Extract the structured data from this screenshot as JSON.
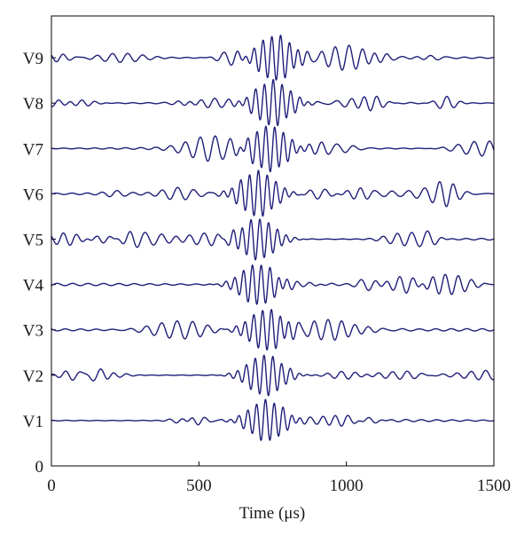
{
  "chart_data": {
    "type": "line",
    "title": "",
    "xlabel": "Time (μs)",
    "ylabel": "",
    "xlim": [
      0,
      1500
    ],
    "ylim": [
      0,
      10
    ],
    "grid": false,
    "legend": "none",
    "x_ticks": [
      0,
      500,
      1000,
      1500
    ],
    "x_tick_labels": [
      "0",
      "500",
      "1000",
      "1500"
    ],
    "y_ticks": [
      0,
      1,
      2,
      3,
      4,
      5,
      6,
      7,
      8,
      9
    ],
    "y_tick_labels": [
      "0",
      "V1",
      "V2",
      "V3",
      "V4",
      "V5",
      "V6",
      "V7",
      "V8",
      "V9"
    ],
    "line_color": "#1f1f7a",
    "series": [
      {
        "name": "V1",
        "offset": 1,
        "main_packet_center_us": 730,
        "main_packet_peak": 0.45
      },
      {
        "name": "V2",
        "offset": 2,
        "main_packet_center_us": 725,
        "main_packet_peak": 0.45
      },
      {
        "name": "V3",
        "offset": 3,
        "main_packet_center_us": 730,
        "main_packet_peak": 0.45
      },
      {
        "name": "V4",
        "offset": 4,
        "main_packet_center_us": 700,
        "main_packet_peak": 0.45
      },
      {
        "name": "V5",
        "offset": 5,
        "main_packet_center_us": 700,
        "main_packet_peak": 0.45
      },
      {
        "name": "V6",
        "offset": 6,
        "main_packet_center_us": 700,
        "main_packet_peak": 0.5
      },
      {
        "name": "V7",
        "offset": 7,
        "main_packet_center_us": 740,
        "main_packet_peak": 0.5
      },
      {
        "name": "V8",
        "offset": 8,
        "main_packet_center_us": 750,
        "main_packet_peak": 0.5
      },
      {
        "name": "V9",
        "offset": 9,
        "main_packet_center_us": 760,
        "main_packet_peak": 0.5
      }
    ]
  }
}
